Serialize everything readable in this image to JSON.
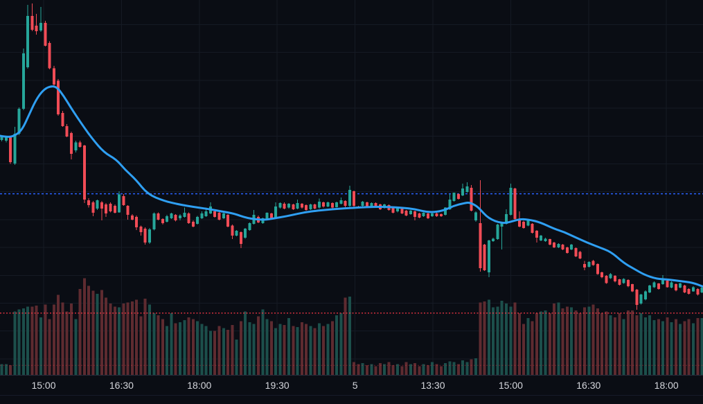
{
  "chart_data": {
    "type": "candlestick",
    "title": "",
    "description": "Dark-theme intraday candlestick price chart with moving-average overlay, volume histogram, one blue dashed horizontal level and two red dotted horizontal levels. No visible price axis (cropped); price values normalized 0-100 where 100 = top of pane, 0 = bottom of pane. Volume normalized 0-100 of histogram height.",
    "x_axis": {
      "ticks": [
        {
          "label": "15:00",
          "x": 63.0
        },
        {
          "label": "16:30",
          "x": 175.4
        },
        {
          "label": "18:00",
          "x": 287.8
        },
        {
          "label": "19:30",
          "x": 400.2
        },
        {
          "label": "5",
          "x": 512.6
        },
        {
          "label": "13:30",
          "x": 625.0
        },
        {
          "label": "15:00",
          "x": 737.4
        },
        {
          "label": "16:30",
          "x": 849.8
        },
        {
          "label": "18:00",
          "x": 962.2
        }
      ]
    },
    "legend": {
      "visible": false
    },
    "grid": {
      "on": true,
      "h_start": 35.5,
      "h_step": 40.2,
      "color": "#151a24"
    },
    "colors": {
      "background": "#0a0d14",
      "up": "#26a69a",
      "down": "#f14c56",
      "volume_up": "#1c4f4b",
      "volume_down": "#5e2b30",
      "ma_line": "#2f9ff2",
      "blue_level": "#2962ff",
      "red_level": "#f23645",
      "axis_text": "#d4d6dc",
      "axis_border": "#262b3a",
      "lower_border": "#161b29"
    },
    "levels": [
      {
        "name": "blue-dashed-level",
        "p": 48.5,
        "color": "#2962ff",
        "dash": "3 3",
        "width": 1.5,
        "opacity": 1.0
      },
      {
        "name": "red-dotted-level",
        "p": 16.8,
        "color": "#f23645",
        "dash": "2 2.5",
        "width": 1.3,
        "opacity": 0.95
      },
      {
        "name": "red-dotted-level-faint",
        "p": 2.9,
        "color": "#f23645",
        "dash": "2 2.5",
        "width": 1.0,
        "opacity": 0.38
      }
    ],
    "ma": [
      [
        0,
        63.9
      ],
      [
        12,
        63.5
      ],
      [
        22,
        64.0
      ],
      [
        32,
        65.5
      ],
      [
        42,
        69.5
      ],
      [
        52,
        73.5
      ],
      [
        62,
        76.0
      ],
      [
        72,
        77.1
      ],
      [
        82,
        76.9
      ],
      [
        92,
        74.5
      ],
      [
        102,
        71.5
      ],
      [
        112,
        68.7
      ],
      [
        122,
        66.0
      ],
      [
        133,
        63.2
      ],
      [
        150,
        59.5
      ],
      [
        168,
        57.6
      ],
      [
        181,
        54.8
      ],
      [
        196,
        52.3
      ],
      [
        213,
        48.4
      ],
      [
        237,
        46.6
      ],
      [
        255,
        45.8
      ],
      [
        270,
        45.3
      ],
      [
        287,
        44.8
      ],
      [
        303,
        44.4
      ],
      [
        320,
        43.8
      ],
      [
        337,
        43.3
      ],
      [
        357,
        42.0
      ],
      [
        380,
        41.5
      ],
      [
        397,
        42.0
      ],
      [
        413,
        42.5
      ],
      [
        430,
        43.2
      ],
      [
        447,
        43.8
      ],
      [
        480,
        44.4
      ],
      [
        513,
        44.8
      ],
      [
        547,
        45.1
      ],
      [
        580,
        44.8
      ],
      [
        600,
        44.4
      ],
      [
        620,
        43.5
      ],
      [
        640,
        44.0
      ],
      [
        655,
        45.3
      ],
      [
        670,
        46.0
      ],
      [
        678,
        46.2
      ],
      [
        688,
        45.3
      ],
      [
        695,
        44.0
      ],
      [
        702,
        42.6
      ],
      [
        710,
        41.6
      ],
      [
        720,
        40.9
      ],
      [
        730,
        40.7
      ],
      [
        740,
        41.2
      ],
      [
        752,
        41.8
      ],
      [
        765,
        41.6
      ],
      [
        780,
        40.9
      ],
      [
        800,
        39.2
      ],
      [
        815,
        38.3
      ],
      [
        830,
        37.0
      ],
      [
        848,
        35.5
      ],
      [
        865,
        34.3
      ],
      [
        882,
        33.1
      ],
      [
        900,
        30.2
      ],
      [
        915,
        28.6
      ],
      [
        930,
        27.0
      ],
      [
        948,
        25.9
      ],
      [
        965,
        25.7
      ],
      [
        982,
        25.3
      ],
      [
        1000,
        24.9
      ],
      [
        1014,
        23.9
      ]
    ],
    "candles_format": [
      "open",
      "high",
      "low",
      "close",
      "volume"
    ],
    "candles": [
      [
        62.8,
        64.1,
        62.4,
        63.7,
        11
      ],
      [
        62.6,
        63.7,
        62.2,
        63.4,
        11
      ],
      [
        63.4,
        63.7,
        56.4,
        56.9,
        10
      ],
      [
        56.5,
        66.3,
        56.2,
        64.5,
        65
      ],
      [
        64.5,
        71.5,
        64.1,
        71.1,
        67
      ],
      [
        71.1,
        87.1,
        70.7,
        85.8,
        68
      ],
      [
        82.1,
        98.7,
        81.8,
        95.8,
        70
      ],
      [
        95.8,
        99.1,
        91.7,
        92.1,
        70
      ],
      [
        93.2,
        96.3,
        90.8,
        91.7,
        71
      ],
      [
        91.9,
        98.2,
        91.5,
        93.9,
        59
      ],
      [
        93.9,
        94.5,
        87.7,
        87.8,
        72
      ],
      [
        88.6,
        89.0,
        81.6,
        81.9,
        57
      ],
      [
        81.9,
        82.5,
        77.3,
        77.5,
        72
      ],
      [
        78.5,
        79.0,
        69.2,
        69.6,
        82
      ],
      [
        70.0,
        70.5,
        66.3,
        66.5,
        74
      ],
      [
        66.5,
        67.0,
        63.5,
        63.7,
        65
      ],
      [
        64.6,
        65.0,
        57.6,
        59.1,
        73
      ],
      [
        60.0,
        62.6,
        59.5,
        62.2,
        57
      ],
      [
        62.2,
        62.6,
        60.8,
        61.0,
        88
      ],
      [
        61.3,
        61.5,
        46.0,
        47.0,
        99
      ],
      [
        46.8,
        47.3,
        44.8,
        45.5,
        91
      ],
      [
        46.2,
        46.6,
        42.5,
        43.5,
        86
      ],
      [
        44.6,
        47.0,
        44.2,
        46.8,
        83
      ],
      [
        46.2,
        46.6,
        41.4,
        44.6,
        87
      ],
      [
        45.7,
        46.0,
        42.4,
        43.3,
        79
      ],
      [
        45.9,
        46.2,
        43.6,
        43.8,
        73
      ],
      [
        45.3,
        45.7,
        43.3,
        43.5,
        70
      ],
      [
        43.6,
        49.2,
        43.5,
        48.3,
        69
      ],
      [
        47.9,
        48.4,
        45.3,
        45.5,
        73
      ],
      [
        45.3,
        45.5,
        41.6,
        42.9,
        74
      ],
      [
        42.7,
        43.1,
        41.4,
        41.6,
        75
      ],
      [
        42.4,
        42.7,
        38.9,
        39.6,
        77
      ],
      [
        39.8,
        40.1,
        37.4,
        38.3,
        60
      ],
      [
        39.2,
        39.6,
        35.0,
        35.5,
        78
      ],
      [
        35.5,
        39.4,
        35.2,
        39.0,
        72
      ],
      [
        39.0,
        43.6,
        38.8,
        43.3,
        63
      ],
      [
        43.3,
        43.6,
        41.4,
        41.6,
        61
      ],
      [
        41.8,
        42.0,
        40.3,
        40.7,
        57
      ],
      [
        41.1,
        42.9,
        40.9,
        42.5,
        50
      ],
      [
        42.0,
        43.5,
        41.8,
        43.3,
        63
      ],
      [
        42.9,
        43.1,
        41.2,
        41.4,
        53
      ],
      [
        42.0,
        43.1,
        41.4,
        42.7,
        54
      ],
      [
        42.4,
        44.8,
        42.2,
        43.5,
        56
      ],
      [
        43.3,
        43.6,
        40.5,
        40.7,
        59
      ],
      [
        41.1,
        41.4,
        39.6,
        39.8,
        57
      ],
      [
        40.5,
        42.6,
        40.3,
        42.4,
        55
      ],
      [
        42.0,
        43.8,
        41.8,
        43.3,
        52
      ],
      [
        42.5,
        44.8,
        42.4,
        43.8,
        50
      ],
      [
        43.3,
        46.2,
        43.1,
        45.1,
        45
      ],
      [
        43.8,
        44.2,
        42.2,
        42.4,
        45
      ],
      [
        43.5,
        43.8,
        41.4,
        41.6,
        50
      ],
      [
        42.0,
        43.6,
        41.8,
        43.3,
        48
      ],
      [
        42.9,
        43.1,
        39.6,
        39.8,
        46
      ],
      [
        40.1,
        40.3,
        36.5,
        37.4,
        51
      ],
      [
        37.4,
        38.9,
        37.2,
        38.7,
        36
      ],
      [
        38.3,
        38.5,
        34.1,
        35.2,
        55
      ],
      [
        36.8,
        39.4,
        36.6,
        39.2,
        65
      ],
      [
        38.9,
        40.9,
        38.7,
        40.7,
        54
      ],
      [
        40.5,
        44.2,
        40.3,
        42.9,
        52
      ],
      [
        42.4,
        42.7,
        40.7,
        40.9,
        60
      ],
      [
        40.7,
        42.2,
        40.5,
        42.0,
        67
      ],
      [
        41.8,
        43.6,
        41.6,
        43.5,
        57
      ],
      [
        43.3,
        43.5,
        41.8,
        42.0,
        55
      ],
      [
        42.2,
        46.2,
        42.0,
        45.1,
        48
      ],
      [
        44.8,
        46.2,
        44.6,
        46.0,
        52
      ],
      [
        45.9,
        46.2,
        44.4,
        44.6,
        51
      ],
      [
        44.8,
        46.0,
        44.6,
        45.9,
        58
      ],
      [
        45.7,
        45.9,
        44.2,
        44.4,
        50
      ],
      [
        44.6,
        47.0,
        44.4,
        46.0,
        49
      ],
      [
        45.9,
        46.0,
        44.6,
        44.8,
        54
      ],
      [
        45.5,
        45.7,
        44.0,
        44.2,
        52
      ],
      [
        44.4,
        45.9,
        44.2,
        45.7,
        50
      ],
      [
        45.7,
        45.9,
        44.4,
        44.6,
        48
      ],
      [
        44.8,
        47.2,
        44.6,
        46.4,
        53
      ],
      [
        46.2,
        46.4,
        44.8,
        45.1,
        50
      ],
      [
        45.1,
        46.4,
        44.9,
        46.2,
        52
      ],
      [
        46.0,
        46.2,
        44.6,
        44.8,
        55
      ],
      [
        44.9,
        46.4,
        44.8,
        46.2,
        61
      ],
      [
        45.9,
        47.5,
        45.7,
        46.8,
        63
      ],
      [
        46.6,
        46.8,
        44.9,
        45.3,
        79
      ],
      [
        45.3,
        50.6,
        44.9,
        49.5,
        80
      ],
      [
        49.2,
        49.4,
        44.9,
        45.3,
        13
      ],
      [
        45.1,
        45.3,
        44.7,
        44.9,
        11
      ],
      [
        45.3,
        46.6,
        45.1,
        46.4,
        12
      ],
      [
        46.2,
        46.4,
        44.8,
        45.1,
        10
      ],
      [
        45.1,
        46.2,
        44.9,
        46.0,
        11
      ],
      [
        46.0,
        46.2,
        44.8,
        44.9,
        9
      ],
      [
        45.7,
        45.9,
        44.2,
        44.4,
        12
      ],
      [
        44.8,
        45.9,
        44.6,
        45.7,
        11
      ],
      [
        45.5,
        45.7,
        44.0,
        44.2,
        13
      ],
      [
        44.8,
        44.9,
        43.3,
        43.5,
        10
      ],
      [
        43.8,
        44.9,
        43.6,
        44.8,
        11
      ],
      [
        44.6,
        44.8,
        43.1,
        43.3,
        9
      ],
      [
        44.0,
        44.2,
        42.5,
        42.7,
        13
      ],
      [
        43.1,
        44.2,
        42.9,
        44.0,
        11
      ],
      [
        43.8,
        44.0,
        41.4,
        42.4,
        12
      ],
      [
        43.3,
        43.5,
        42.0,
        42.2,
        9
      ],
      [
        42.5,
        43.6,
        42.4,
        43.5,
        11
      ],
      [
        43.3,
        43.5,
        41.8,
        42.0,
        10
      ],
      [
        42.5,
        43.5,
        42.4,
        43.3,
        13
      ],
      [
        43.3,
        43.5,
        42.4,
        42.5,
        11
      ],
      [
        43.1,
        43.3,
        42.4,
        42.5,
        9
      ],
      [
        42.9,
        44.9,
        42.7,
        44.8,
        12
      ],
      [
        44.4,
        48.4,
        44.2,
        47.0,
        14
      ],
      [
        46.6,
        48.8,
        46.4,
        48.8,
        13
      ],
      [
        48.4,
        48.6,
        47.0,
        47.1,
        11
      ],
      [
        48.1,
        51.2,
        47.9,
        49.9,
        15
      ],
      [
        49.0,
        51.6,
        48.8,
        50.5,
        13
      ],
      [
        50.1,
        50.8,
        43.8,
        44.0,
        16
      ],
      [
        41.4,
        43.8,
        41.1,
        43.6,
        17
      ],
      [
        40.7,
        52.1,
        27.8,
        28.7,
        74
      ],
      [
        35.0,
        35.2,
        28.0,
        28.2,
        75
      ],
      [
        27.6,
        36.3,
        26.3,
        36.1,
        77
      ],
      [
        35.9,
        36.8,
        35.7,
        36.6,
        69
      ],
      [
        36.5,
        40.5,
        36.3,
        40.3,
        70
      ],
      [
        39.8,
        41.1,
        33.7,
        40.9,
        76
      ],
      [
        40.5,
        44.4,
        40.3,
        43.1,
        73
      ],
      [
        42.9,
        51.2,
        42.7,
        50.1,
        70
      ],
      [
        49.9,
        50.1,
        41.6,
        41.8,
        74
      ],
      [
        41.6,
        43.8,
        39.6,
        39.8,
        63
      ],
      [
        41.1,
        41.3,
        39.2,
        39.4,
        52
      ],
      [
        40.1,
        41.6,
        39.9,
        41.4,
        58
      ],
      [
        40.5,
        40.7,
        37.9,
        38.1,
        55
      ],
      [
        38.7,
        38.9,
        35.5,
        36.8,
        63
      ],
      [
        36.1,
        37.6,
        35.9,
        37.4,
        65
      ],
      [
        35.9,
        36.8,
        35.7,
        36.6,
        66
      ],
      [
        36.5,
        36.6,
        34.8,
        35.0,
        63
      ],
      [
        35.5,
        35.7,
        34.1,
        34.3,
        73
      ],
      [
        34.3,
        35.4,
        34.1,
        35.2,
        74
      ],
      [
        35.0,
        35.2,
        33.5,
        33.7,
        68
      ],
      [
        34.3,
        34.4,
        32.6,
        32.8,
        70
      ],
      [
        33.7,
        35.2,
        33.5,
        35.0,
        69
      ],
      [
        34.1,
        34.3,
        31.7,
        31.9,
        66
      ],
      [
        33.1,
        33.3,
        31.1,
        31.3,
        63
      ],
      [
        29.8,
        30.7,
        28.2,
        28.9,
        69
      ],
      [
        29.1,
        30.6,
        28.9,
        30.4,
        70
      ],
      [
        30.7,
        30.9,
        29.4,
        29.6,
        72
      ],
      [
        29.8,
        30.0,
        27.0,
        27.2,
        68
      ],
      [
        27.6,
        27.8,
        26.1,
        26.3,
        63
      ],
      [
        26.7,
        26.9,
        24.6,
        24.8,
        65
      ],
      [
        26.1,
        27.4,
        25.9,
        27.2,
        61
      ],
      [
        26.7,
        26.9,
        25.0,
        25.2,
        59
      ],
      [
        25.8,
        25.9,
        24.1,
        24.3,
        63
      ],
      [
        24.8,
        26.1,
        24.6,
        25.9,
        57
      ],
      [
        25.6,
        25.8,
        23.7,
        23.9,
        66
      ],
      [
        24.5,
        24.6,
        22.4,
        22.6,
        66
      ],
      [
        23.0,
        23.2,
        17.7,
        19.0,
        61
      ],
      [
        19.3,
        21.9,
        19.1,
        21.7,
        63
      ],
      [
        20.4,
        22.8,
        20.2,
        22.6,
        59
      ],
      [
        22.3,
        24.3,
        22.1,
        24.1,
        61
      ],
      [
        23.7,
        25.2,
        23.5,
        25.0,
        56
      ],
      [
        24.7,
        24.8,
        23.0,
        23.2,
        57
      ],
      [
        24.5,
        26.9,
        24.3,
        25.6,
        55
      ],
      [
        25.4,
        25.6,
        23.6,
        23.7,
        59
      ],
      [
        23.6,
        25.2,
        23.4,
        25.0,
        54
      ],
      [
        24.5,
        24.7,
        22.6,
        22.8,
        57
      ],
      [
        23.6,
        24.9,
        23.4,
        24.7,
        52
      ],
      [
        24.1,
        24.3,
        22.1,
        22.3,
        55
      ],
      [
        23.2,
        23.4,
        21.7,
        21.9,
        57
      ],
      [
        22.6,
        23.9,
        22.5,
        23.7,
        53
      ],
      [
        23.2,
        23.4,
        21.5,
        21.7,
        58
      ],
      [
        22.3,
        23.8,
        22.1,
        23.6,
        58
      ]
    ]
  }
}
